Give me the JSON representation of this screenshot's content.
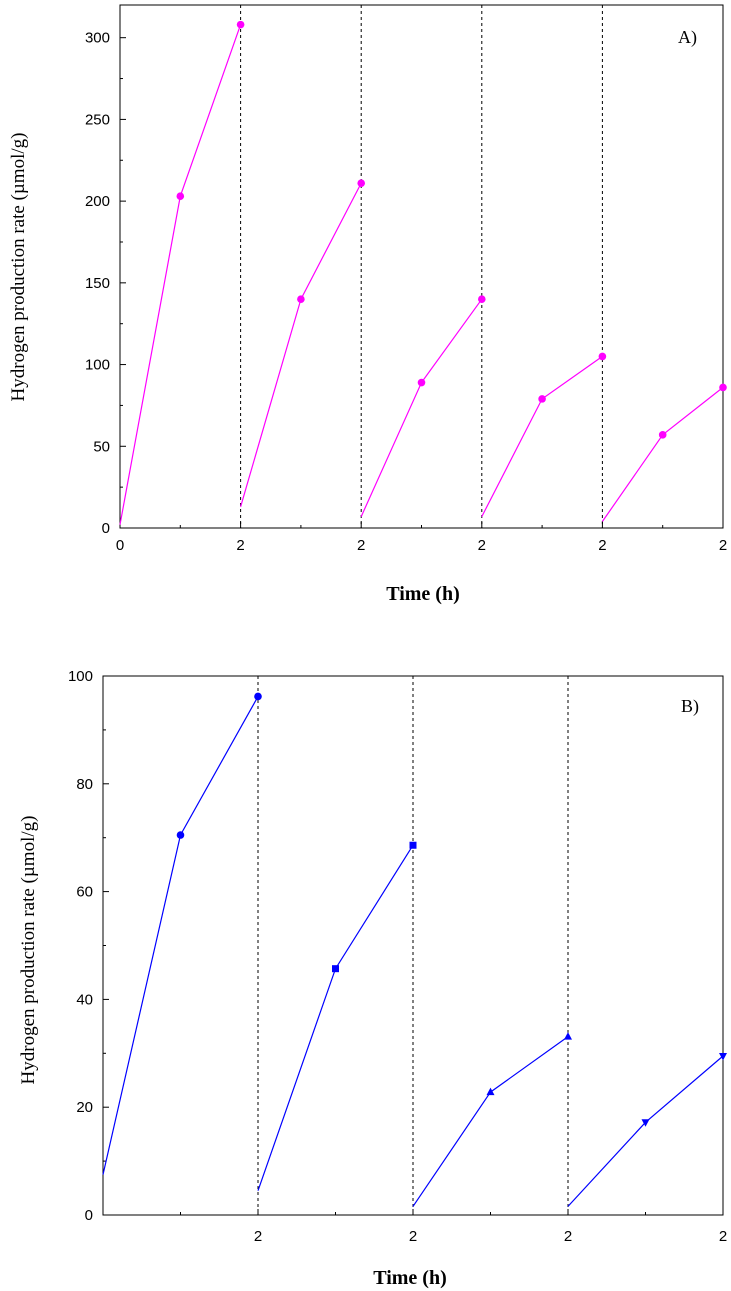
{
  "chart_data": [
    {
      "panel_label": "A)",
      "type": "line",
      "xlabel": "Time (h)",
      "ylabel": "Hydrogen production rate (µmol/g)",
      "ylim": [
        0,
        320
      ],
      "yticks": [
        0,
        50,
        100,
        150,
        200,
        250,
        300
      ],
      "cycle_tick_labels": [
        "0",
        "2",
        "2",
        "2",
        "2",
        "2"
      ],
      "grid": false,
      "legend": "none",
      "color": "#ff00ff",
      "cycles": [
        {
          "x": [
            0,
            1,
            2
          ],
          "y": [
            2,
            203,
            308
          ]
        },
        {
          "x": [
            0,
            1,
            2
          ],
          "y": [
            13,
            140,
            211
          ]
        },
        {
          "x": [
            0,
            1,
            2
          ],
          "y": [
            7,
            89,
            140
          ]
        },
        {
          "x": [
            0,
            1,
            2
          ],
          "y": [
            7,
            79,
            105
          ]
        },
        {
          "x": [
            0,
            1,
            2
          ],
          "y": [
            4,
            57,
            86
          ]
        }
      ]
    },
    {
      "panel_label": "B)",
      "type": "line",
      "xlabel": "Time (h)",
      "ylabel": "Hydrogen production rate (µmol/g)",
      "ylim": [
        0,
        100
      ],
      "yticks": [
        0,
        20,
        40,
        60,
        80,
        100
      ],
      "cycle_tick_labels": [
        "",
        "2",
        "2",
        "2",
        "2"
      ],
      "grid": false,
      "legend": "none",
      "color": "#0000ff",
      "cycles": [
        {
          "x": [
            0,
            1,
            2
          ],
          "y": [
            7.5,
            70.5,
            96.2
          ],
          "marker": "circle"
        },
        {
          "x": [
            0,
            1,
            2
          ],
          "y": [
            4.5,
            45.7,
            68.6
          ],
          "marker": "square"
        },
        {
          "x": [
            0,
            1,
            2
          ],
          "y": [
            1.6,
            22.8,
            33.1
          ],
          "marker": "triangle-up"
        },
        {
          "x": [
            0,
            1,
            2
          ],
          "y": [
            1.6,
            17.2,
            29.5
          ],
          "marker": "triangle-down"
        }
      ]
    }
  ]
}
